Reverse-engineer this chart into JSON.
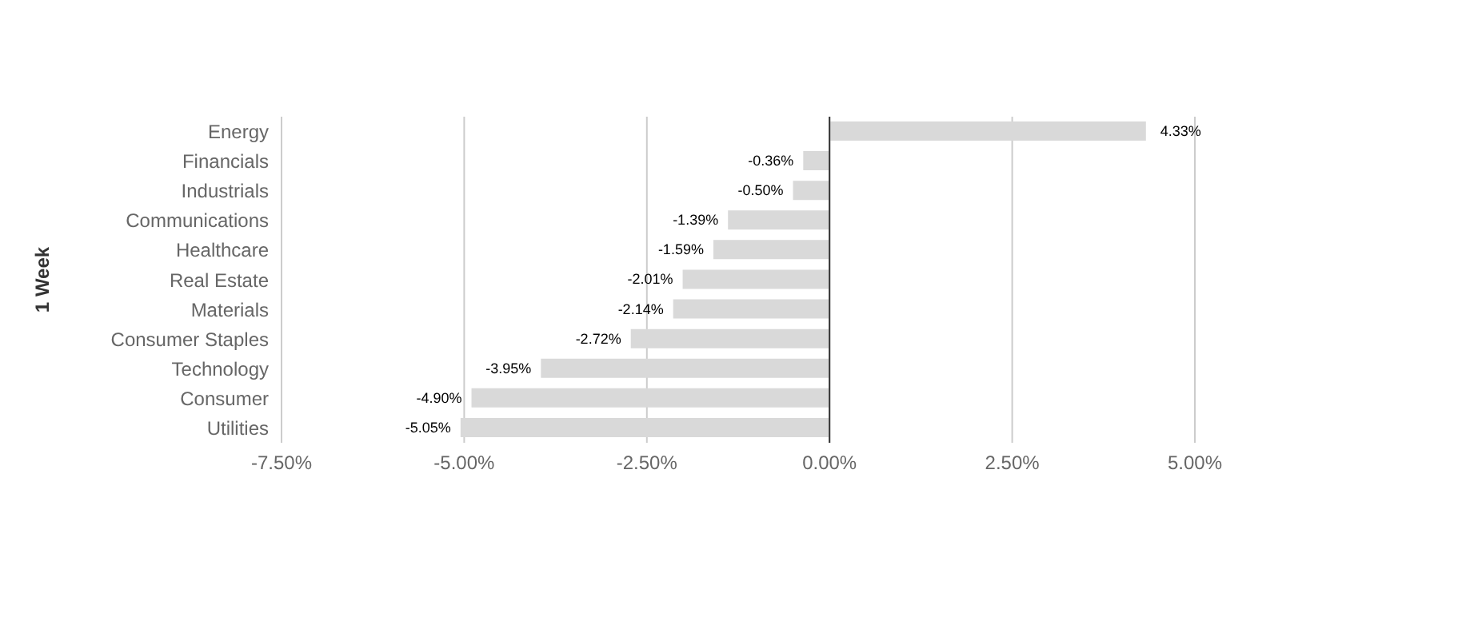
{
  "chart_data": {
    "type": "bar",
    "orientation": "horizontal",
    "ylabel": "1 Week",
    "categories": [
      "Energy",
      "Financials",
      "Industrials",
      "Communications",
      "Healthcare",
      "Real Estate",
      "Materials",
      "Consumer Staples",
      "Technology",
      "Consumer",
      "Utilities"
    ],
    "values": [
      4.33,
      -0.36,
      -0.5,
      -1.39,
      -1.59,
      -2.01,
      -2.14,
      -2.72,
      -3.95,
      -4.9,
      -5.05
    ],
    "value_labels": [
      "4.33%",
      "-0.36%",
      "-0.50%",
      "-1.39%",
      "-1.59%",
      "-2.01%",
      "-2.14%",
      "-2.72%",
      "-3.95%",
      "-4.90%",
      "-5.05%"
    ],
    "color": "#d9d9d9",
    "xlim": [
      -7.5,
      5
    ],
    "xticks": [
      {
        "value": -7.5,
        "label": "-7.50%"
      },
      {
        "value": -5,
        "label": "-5.00%"
      },
      {
        "value": -2.5,
        "label": "-2.50%"
      },
      {
        "value": 0,
        "label": "0.00%"
      },
      {
        "value": 2.5,
        "label": "2.50%"
      },
      {
        "value": 5,
        "label": "5.00%"
      }
    ],
    "ref_lines": [
      {
        "axis": "x",
        "value": 0,
        "color": "#333333"
      }
    ],
    "grid": "x",
    "legend": false
  }
}
